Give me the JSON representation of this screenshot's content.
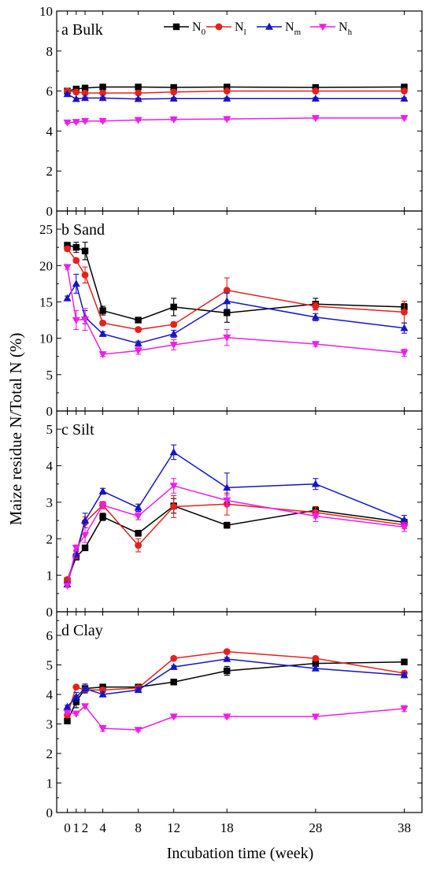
{
  "figure": {
    "ylabel": "Maize residue N/Total N (%)",
    "xlabel": "Incubation time (week)",
    "x_ticks": [
      0,
      1,
      2,
      4,
      8,
      12,
      18,
      28,
      38
    ],
    "legend": {
      "placement": "top-right of panel a",
      "entries": [
        {
          "base": "N",
          "sub": "0",
          "color": "#000000",
          "marker": "square"
        },
        {
          "base": "N",
          "sub": "l",
          "color": "#e8201b",
          "marker": "circle"
        },
        {
          "base": "N",
          "sub": "m",
          "color": "#1414c8",
          "marker": "triangle-up"
        },
        {
          "base": "N",
          "sub": "h",
          "color": "#ee1ee8",
          "marker": "triangle-down"
        }
      ]
    }
  },
  "chart_data": [
    {
      "type": "line",
      "panel_label": "a  Bulk",
      "x": [
        0,
        1,
        2,
        4,
        8,
        12,
        18,
        28,
        38
      ],
      "ylim": [
        0,
        10
      ],
      "yticks": [
        0,
        2,
        4,
        6,
        8,
        10
      ],
      "series": [
        {
          "name": "N0",
          "values": [
            6.0,
            6.1,
            6.15,
            6.2,
            6.2,
            6.18,
            6.2,
            6.18,
            6.2
          ],
          "errors": [
            0.05,
            0.05,
            0.05,
            0.05,
            0.05,
            0.05,
            0.05,
            0.05,
            0.05
          ]
        },
        {
          "name": "Nl",
          "values": [
            6.0,
            5.95,
            5.9,
            5.9,
            5.9,
            5.95,
            6.0,
            6.0,
            6.0
          ],
          "errors": [
            0.05,
            0.05,
            0.05,
            0.05,
            0.05,
            0.05,
            0.05,
            0.05,
            0.05
          ]
        },
        {
          "name": "Nm",
          "values": [
            5.85,
            5.6,
            5.65,
            5.65,
            5.6,
            5.62,
            5.62,
            5.62,
            5.62
          ],
          "errors": [
            0.05,
            0.05,
            0.05,
            0.05,
            0.05,
            0.05,
            0.05,
            0.05,
            0.05
          ]
        },
        {
          "name": "Nh",
          "values": [
            4.42,
            4.45,
            4.5,
            4.5,
            4.55,
            4.58,
            4.6,
            4.65,
            4.65
          ],
          "errors": [
            0.05,
            0.05,
            0.05,
            0.05,
            0.05,
            0.05,
            0.05,
            0.05,
            0.05
          ]
        }
      ]
    },
    {
      "type": "line",
      "panel_label": "b  Sand",
      "x": [
        0,
        1,
        2,
        4,
        8,
        12,
        18,
        28,
        38
      ],
      "ylim": [
        0,
        27.5
      ],
      "yticks": [
        0,
        5,
        10,
        15,
        20,
        25
      ],
      "series": [
        {
          "name": "N0",
          "values": [
            22.8,
            22.5,
            22.0,
            13.8,
            12.5,
            14.3,
            13.5,
            14.7,
            14.3
          ],
          "errors": [
            0.3,
            0.7,
            1.2,
            0.6,
            0.3,
            1.2,
            1.3,
            0.8,
            0.5
          ]
        },
        {
          "name": "Nl",
          "values": [
            22.3,
            20.7,
            18.7,
            12.1,
            11.2,
            11.9,
            16.6,
            14.4,
            13.6
          ],
          "errors": [
            0.3,
            0.3,
            1.1,
            0.3,
            0.3,
            0.3,
            1.7,
            0.5,
            1.5
          ]
        },
        {
          "name": "Nm",
          "values": [
            15.5,
            17.5,
            12.9,
            10.6,
            9.3,
            10.6,
            15.1,
            12.9,
            11.4
          ],
          "errors": [
            0.3,
            1.3,
            0.9,
            0.3,
            0.3,
            0.5,
            1.1,
            0.5,
            0.7
          ]
        },
        {
          "name": "Nh",
          "values": [
            19.8,
            12.5,
            12.6,
            7.8,
            8.3,
            9.1,
            10.1,
            9.2,
            8.0
          ],
          "errors": [
            0.3,
            1.3,
            1.5,
            0.3,
            0.5,
            0.7,
            1.1,
            0.3,
            0.5
          ]
        }
      ]
    },
    {
      "type": "line",
      "panel_label": "c  Silt",
      "x": [
        0,
        1,
        2,
        4,
        8,
        12,
        18,
        28,
        38
      ],
      "ylim": [
        0,
        5.5
      ],
      "yticks": [
        0,
        1,
        2,
        3,
        4,
        5
      ],
      "series": [
        {
          "name": "N0",
          "values": [
            0.85,
            1.5,
            1.75,
            2.6,
            2.15,
            2.9,
            2.37,
            2.78,
            2.45
          ],
          "errors": [
            0.05,
            0.08,
            0.05,
            0.1,
            0.08,
            0.2,
            0.08,
            0.1,
            0.08
          ]
        },
        {
          "name": "Nl",
          "values": [
            0.88,
            1.55,
            2.45,
            2.92,
            1.82,
            2.88,
            2.95,
            2.72,
            2.38
          ],
          "errors": [
            0.05,
            0.1,
            0.15,
            0.1,
            0.18,
            0.3,
            0.3,
            0.15,
            0.1
          ]
        },
        {
          "name": "Nm",
          "values": [
            0.75,
            1.6,
            2.5,
            3.3,
            2.85,
            4.37,
            3.4,
            3.5,
            2.52
          ],
          "errors": [
            0.05,
            0.1,
            0.2,
            0.08,
            0.1,
            0.2,
            0.4,
            0.15,
            0.12
          ]
        },
        {
          "name": "Nh",
          "values": [
            0.72,
            1.75,
            2.1,
            2.92,
            2.62,
            3.45,
            3.05,
            2.62,
            2.32
          ],
          "errors": [
            0.05,
            0.08,
            0.2,
            0.08,
            0.1,
            0.2,
            0.15,
            0.15,
            0.12
          ]
        }
      ]
    },
    {
      "type": "line",
      "panel_label": "d  Clay",
      "x": [
        0,
        1,
        2,
        4,
        8,
        12,
        18,
        28,
        38
      ],
      "ylim": [
        0,
        6.8
      ],
      "yticks": [
        0,
        1,
        2,
        3,
        4,
        5,
        6
      ],
      "series": [
        {
          "name": "N0",
          "values": [
            3.1,
            3.75,
            4.2,
            4.25,
            4.25,
            4.42,
            4.8,
            5.05,
            5.1
          ],
          "errors": [
            0.05,
            0.2,
            0.15,
            0.08,
            0.08,
            0.05,
            0.15,
            0.1,
            0.05
          ]
        },
        {
          "name": "Nl",
          "values": [
            3.3,
            4.25,
            4.15,
            4.15,
            4.22,
            5.22,
            5.45,
            5.22,
            4.72
          ],
          "errors": [
            0.05,
            0.05,
            0.08,
            0.08,
            0.05,
            0.05,
            0.05,
            0.05,
            0.08
          ]
        },
        {
          "name": "Nm",
          "values": [
            3.58,
            3.92,
            4.2,
            4.0,
            4.15,
            4.93,
            5.2,
            4.88,
            4.65
          ],
          "errors": [
            0.05,
            0.15,
            0.15,
            0.08,
            0.08,
            0.05,
            0.05,
            0.08,
            0.08
          ]
        },
        {
          "name": "Nh",
          "values": [
            3.38,
            3.35,
            3.6,
            2.85,
            2.8,
            3.25,
            3.25,
            3.25,
            3.52
          ],
          "errors": [
            0.05,
            0.05,
            0.05,
            0.1,
            0.05,
            0.05,
            0.05,
            0.08,
            0.1
          ]
        }
      ]
    }
  ]
}
